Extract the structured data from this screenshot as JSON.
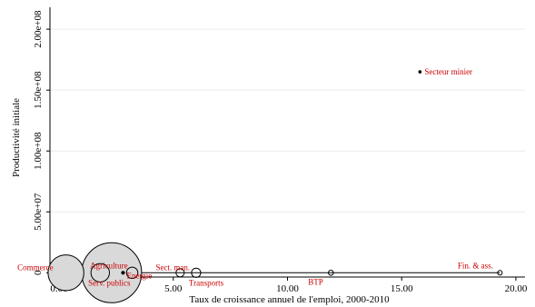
{
  "chart_data": {
    "type": "scatter",
    "title": "",
    "xlabel": "Taux de croissance annuel de l'emploi, 2000-2010",
    "ylabel": "Productivité initiale",
    "xlim": [
      -0.4,
      20.4
    ],
    "ylim": [
      -3500000,
      218000000
    ],
    "xticks": [
      0,
      5,
      10,
      15,
      20
    ],
    "xtick_labels": [
      "0.00",
      "5.00",
      "10.00",
      "15.00",
      "20.00"
    ],
    "yticks": [
      0,
      50000000,
      100000000,
      150000000,
      200000000
    ],
    "ytick_labels": [
      "0",
      "5.00e+07",
      "1.00e+08",
      "1.50e+08",
      "2.00e+08"
    ],
    "grid": "horizontal",
    "label_color": "#cc0000",
    "marker_color": "#000000",
    "bubble_fill": "#d9d9d9",
    "points": [
      {
        "label": "Commerce",
        "x": 0.3,
        "y": 0,
        "weight": 15
      },
      {
        "label": "Agriculture",
        "x": 2.3,
        "y": 0,
        "weight": 42
      },
      {
        "label": "Serv. publics",
        "x": 1.8,
        "y": 0,
        "weight": 4
      },
      {
        "label": "Energie",
        "x": 2.8,
        "y": 0,
        "weight": 0.1
      },
      {
        "label": "",
        "x": 3.2,
        "y": 0,
        "weight": 1.5
      },
      {
        "label": "Sect. man.",
        "x": 5.3,
        "y": 0,
        "weight": 0.8
      },
      {
        "label": "Transports",
        "x": 6.0,
        "y": 0,
        "weight": 1.0
      },
      {
        "label": "BTP",
        "x": 11.9,
        "y": 0,
        "weight": 0.3
      },
      {
        "label": "Fin. & ass.",
        "x": 19.3,
        "y": 0,
        "weight": 0.25
      },
      {
        "label": "Secteur minier",
        "x": 15.8,
        "y": 165000000,
        "weight": 0.02
      }
    ],
    "fit_line": {
      "x": [
        0.3,
        19.3
      ],
      "y": [
        0,
        0
      ]
    }
  }
}
